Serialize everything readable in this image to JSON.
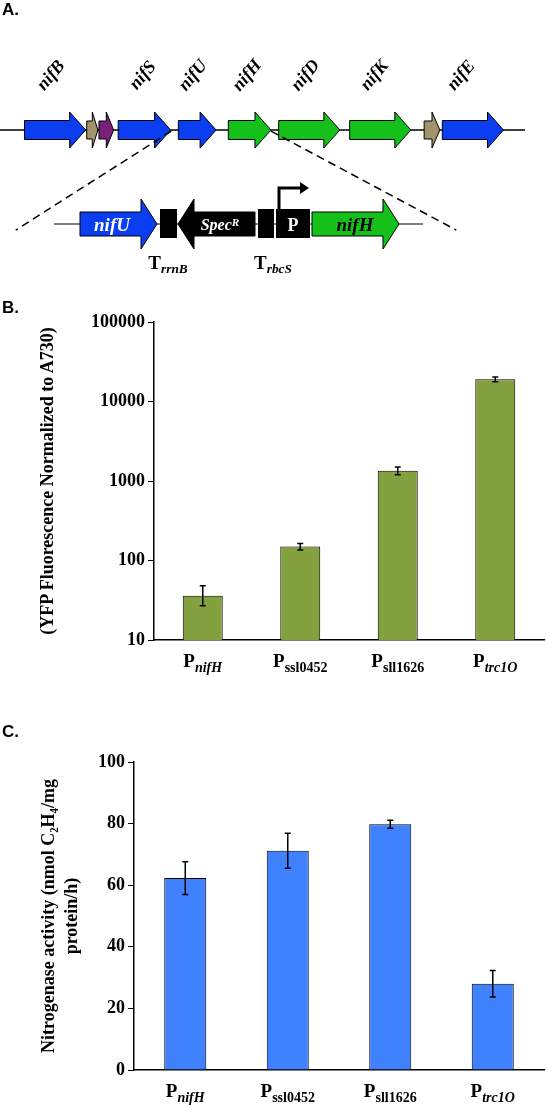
{
  "chart_data": [
    {
      "type": "other",
      "title": "A.",
      "annotations": [
        "nifB",
        "nifS",
        "nifU",
        "nifH",
        "nifD",
        "nifK",
        "nifE",
        "nifU",
        "Spec$^{R}$",
        "P",
        "nifH",
        "T$_{rrnB}$",
        "T$_{rbcS}$"
      ]
    },
    {
      "type": "bar",
      "title": "B.",
      "ylabel": "(YFP Fluorescence Normalized to A730)",
      "log": true,
      "categories": [
        "P$_{nifH}$",
        "P$_{ssl0452}$",
        "P$_{sll1626}$",
        "P$_{trc1O}$"
      ],
      "values": [
        36,
        150,
        1350,
        19000
      ],
      "color": "#83a13f",
      "errors": [
        [
          27,
          48
        ],
        [
          136,
          164
        ],
        [
          1200,
          1500
        ],
        [
          17700,
          20400
        ]
      ],
      "ylim": [
        10,
        100000
      ],
      "yticks": [
        10,
        100,
        1000,
        10000,
        100000
      ],
      "grid": false,
      "legend": false
    },
    {
      "type": "bar",
      "title": "C.",
      "ylabel": "Nitrogenase activity (nmol C₂H₄/mg protein/h)",
      "categories": [
        "P$_{nifH}$",
        "P$_{ssl0452}$",
        "P$_{sll1626}$",
        "P$_{trc1O}$"
      ],
      "values": [
        62.3,
        71.2,
        79.8,
        28.0
      ],
      "color": "#4081ff",
      "errors": [
        5.3,
        5.7,
        1.3,
        4.3
      ],
      "ylim": [
        0,
        100
      ],
      "yticks": [
        0,
        20,
        40,
        60,
        80,
        100
      ],
      "grid": false,
      "legend": false
    }
  ]
}
